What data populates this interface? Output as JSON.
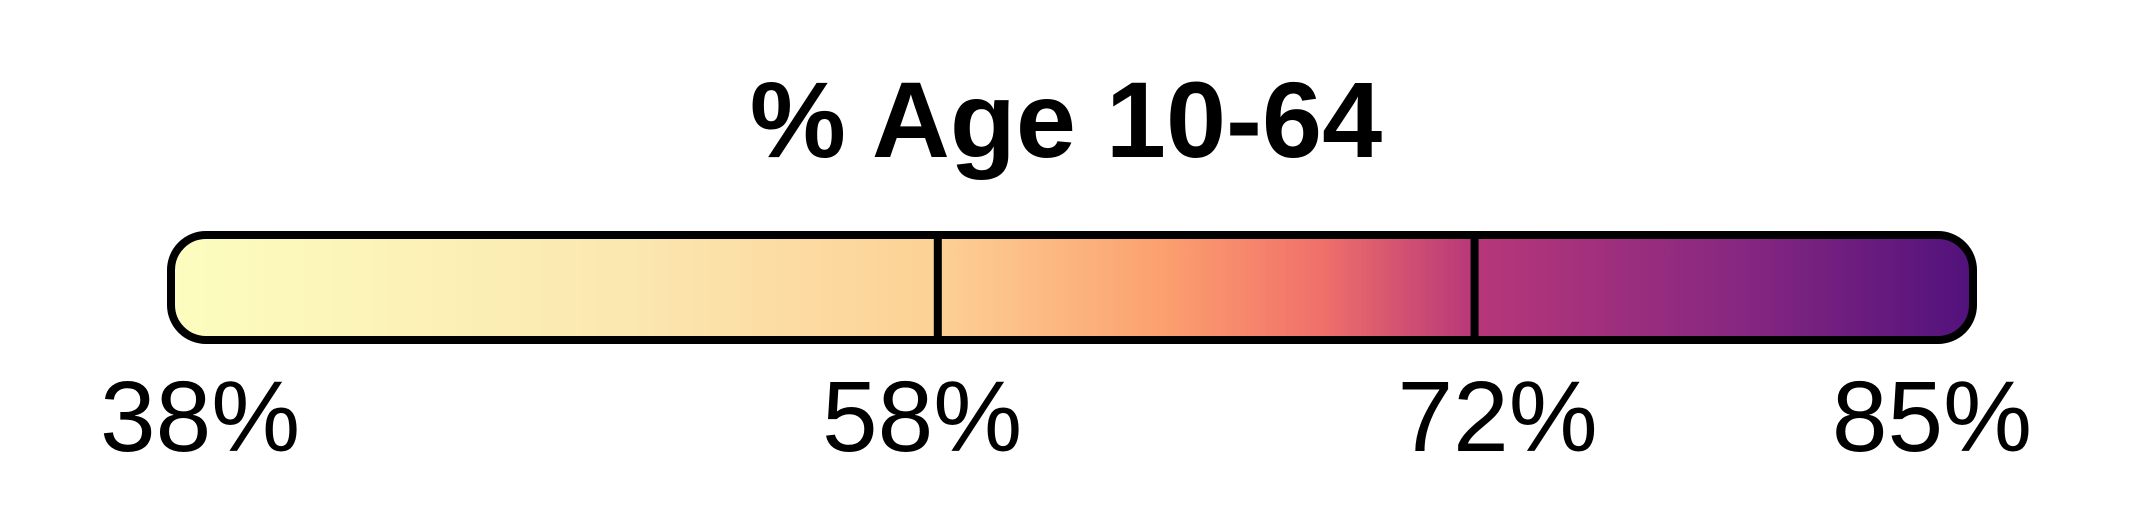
{
  "chart_data": {
    "type": "heatmap",
    "title": "% Age 10-64",
    "colorscale": "magma-reversed",
    "range": [
      38,
      85
    ],
    "unit": "%",
    "ticks": [
      {
        "value": 38,
        "label": "38%"
      },
      {
        "value": 58,
        "label": "58%"
      },
      {
        "value": 72,
        "label": "72%"
      },
      {
        "value": 85,
        "label": "85%"
      }
    ],
    "gradient_stops": [
      {
        "value": 38,
        "color": "#fcfdbf"
      },
      {
        "value": 50,
        "color": "#fbe7b0"
      },
      {
        "value": 58,
        "color": "#fcd195"
      },
      {
        "value": 64,
        "color": "#fb9f6e"
      },
      {
        "value": 68,
        "color": "#f0706a"
      },
      {
        "value": 72,
        "color": "#b73779"
      },
      {
        "value": 79,
        "color": "#862781"
      },
      {
        "value": 85,
        "color": "#51127c"
      }
    ],
    "legend_colors": {
      "border": "#000000"
    }
  }
}
